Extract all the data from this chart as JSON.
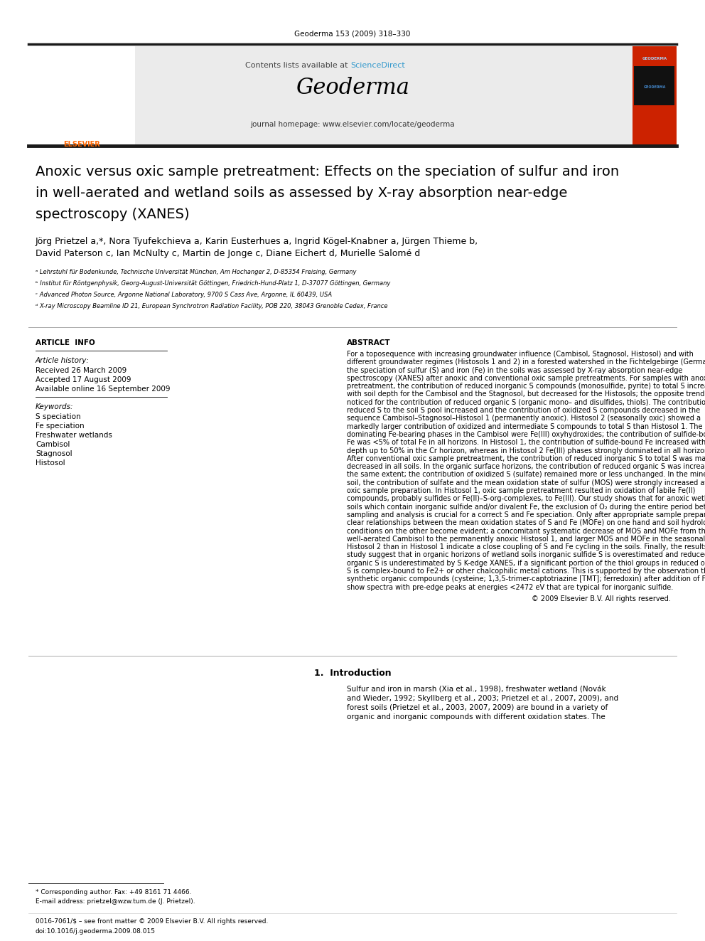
{
  "background_color": "#ffffff",
  "page_width": 9.92,
  "page_height": 13.23,
  "dpi": 100,
  "top_citation": "Geoderma 153 (2009) 318–330",
  "header_text_pre": "Contents lists available at ",
  "header_text_blue": "ScienceDirect",
  "header_blue_color": "#3399cc",
  "journal_name": "Geoderma",
  "journal_homepage": "journal homepage: www.elsevier.com/locate/geoderma",
  "journal_bg_color": "#cc2200",
  "title_line1": "Anoxic versus oxic sample pretreatment: Effects on the speciation of sulfur and iron",
  "title_line2": "in well-aerated and wetland soils as assessed by X-ray absorption near-edge",
  "title_line3": "spectroscopy (XANES)",
  "authors_line1": "Jörg Prietzel a,*, Nora Tyufekchieva a, Karin Eusterhues a, Ingrid Kögel-Knabner a, Jürgen Thieme b,",
  "authors_line2": "David Paterson c, Ian McNulty c, Martin de Jonge c, Diane Eichert d, Murielle Salomé d",
  "affil_a": "ᵃ Lehrstuhl für Bodenkunde, Technische Universität München, Am Hochanger 2, D-85354 Freising, Germany",
  "affil_b": "ᵇ Institut für Röntgenphysik, Georg-August-Universität Göttingen, Friedrich-Hund-Platz 1, D-37077 Göttingen, Germany",
  "affil_c": "ᶜ Advanced Photon Source, Argonne National Laboratory, 9700 S Cass Ave, Argonne, IL 60439, USA",
  "affil_d": "ᵈ X-ray Microscopy Beamline ID 21, European Synchrotron Radiation Facility, POB 220, 38043 Grenoble Cedex, France",
  "article_info_title": "ARTICLE  INFO",
  "article_history_label": "Article history:",
  "received": "Received 26 March 2009",
  "accepted": "Accepted 17 August 2009",
  "available": "Available online 16 September 2009",
  "keywords_label": "Keywords:",
  "keywords": [
    "S speciation",
    "Fe speciation",
    "Freshwater wetlands",
    "Cambisol",
    "Stagnosol",
    "Histosol"
  ],
  "abstract_title": "ABSTRACT",
  "abstract_lines": [
    "For a toposequence with increasing groundwater influence (Cambisol, Stagnosol, Histosol) and with",
    "different groundwater regimes (Histosols 1 and 2) in a forested watershed in the Fichtelgebirge (Germany),",
    "the speciation of sulfur (S) and iron (Fe) in the soils was assessed by X-ray absorption near-edge",
    "spectroscopy (XANES) after anoxic and conventional oxic sample pretreatments. For samples with anoxic",
    "pretreatment, the contribution of reduced inorganic S compounds (monosulfide, pyrite) to total S increased",
    "with soil depth for the Cambisol and the Stagnosol, but decreased for the Histosols; the opposite trend was",
    "noticed for the contribution of reduced organic S (organic mono– and disulfides, thiols). The contribution of",
    "reduced S to the soil S pool increased and the contribution of oxidized S compounds decreased in the",
    "sequence Cambisol–Stagnosol–Histosol 1 (permanently anoxic). Histosol 2 (seasonally oxic) showed a",
    "markedly larger contribution of oxidized and intermediate S compounds to total S than Histosol 1. The",
    "dominating Fe-bearing phases in the Cambisol were Fe(III) oxyhydroxides; the contribution of sulfide-bound",
    "Fe was <5% of total Fe in all horizons. In Histosol 1, the contribution of sulfide-bound Fe increased with soil",
    "depth up to 50% in the Cr horizon, whereas in Histosol 2 Fe(III) phases strongly dominated in all horizons.",
    "After conventional oxic sample pretreatment, the contribution of reduced inorganic S to total S was markedly",
    "decreased in all soils. In the organic surface horizons, the contribution of reduced organic S was increased to",
    "the same extent; the contribution of oxidized S (sulfate) remained more or less unchanged. In the mineral",
    "soil, the contribution of sulfate and the mean oxidation state of sulfur (MOS) were strongly increased after",
    "oxic sample preparation. In Histosol 1, oxic sample pretreatment resulted in oxidation of labile Fe(II)",
    "compounds, probably sulfides or Fe(II)–S-org-complexes, to Fe(III). Our study shows that for anoxic wetland",
    "soils which contain inorganic sulfide and/or divalent Fe, the exclusion of O₂ during the entire period between",
    "sampling and analysis is crucial for a correct S and Fe speciation. Only after appropriate sample preparation,",
    "clear relationships between the mean oxidation states of S and Fe (MOFe) on one hand and soil hydrological",
    "conditions on the other become evident; a concomitant systematic decrease of MOS and MOFe from the",
    "well-aerated Cambisol to the permanently anoxic Histosol 1, and larger MOS and MOFe in the seasonally oxic",
    "Histosol 2 than in Histosol 1 indicate a close coupling of S and Fe cycling in the soils. Finally, the results of our",
    "study suggest that in organic horizons of wetland soils inorganic sulfide S is overestimated and reduced",
    "organic S is underestimated by S K-edge XANES, if a significant portion of the thiol groups in reduced organic",
    "S is complex-bound to Fe2+ or other chalcophilic metal cations. This is supported by the observation that",
    "synthetic organic compounds (cysteine; 1,3,5-trimer-captotriazine [TMT]; ferredoxin) after addition of Fe",
    "show spectra with pre-edge peaks at energies <2472 eV that are typical for inorganic sulfide."
  ],
  "copyright": "© 2009 Elsevier B.V. All rights reserved.",
  "intro_title": "1.  Introduction",
  "intro_lines": [
    "Sulfur and iron in marsh (Xia et al., 1998), freshwater wetland (Novák",
    "and Wieder, 1992; Skyllberg et al., 2003; Prietzel et al., 2007, 2009), and",
    "forest soils (Prietzel et al., 2003, 2007, 2009) are bound in a variety of",
    "organic and inorganic compounds with different oxidation states. The"
  ],
  "footnote_star": "* Corresponding author. Fax: +49 8161 71 4466.",
  "footnote_email": "E-mail address: prietzel@wzw.tum.de (J. Prietzel).",
  "bottom_bar1": "0016-7061/$ – see front matter © 2009 Elsevier B.V. All rights reserved.",
  "bottom_bar2": "doi:10.1016/j.geoderma.2009.08.015",
  "header_gray": "#ebebeb",
  "thick_border": "#1a1a1a",
  "elsevier_orange": "#ff6600"
}
